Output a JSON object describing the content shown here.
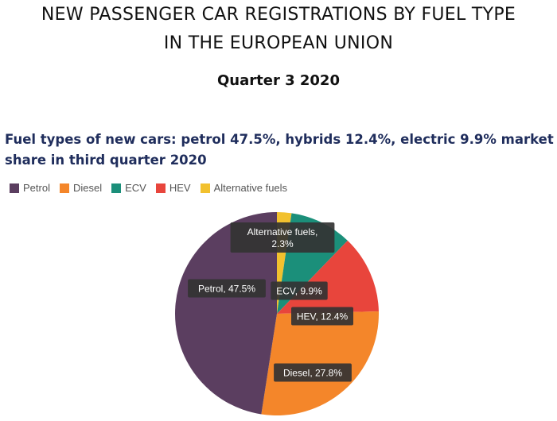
{
  "header": {
    "title_line1": "NEW PASSENGER CAR REGISTRATIONS BY FUEL TYPE",
    "title_line2": "IN THE EUROPEAN UNION",
    "period": "Quarter 3 2020"
  },
  "chart_data": {
    "type": "pie",
    "title": "Fuel types of new cars: petrol 47.5%, hybrids 12.4%, electric 9.9% market share in third quarter 2020",
    "legend_position": "top-left",
    "slices": [
      {
        "name": "Alternative fuels",
        "value": 2.3,
        "color": "#f2c12e",
        "label": "Alternative fuels, 2.3%"
      },
      {
        "name": "ECV",
        "value": 9.9,
        "color": "#1b8f7a",
        "label": "ECV, 9.9%"
      },
      {
        "name": "HEV",
        "value": 12.4,
        "color": "#e8453c",
        "label": "HEV, 12.4%"
      },
      {
        "name": "Diesel",
        "value": 27.8,
        "color": "#f4862a",
        "label": "Diesel, 27.8%"
      },
      {
        "name": "Petrol",
        "value": 47.5,
        "color": "#5b3e60",
        "label": "Petrol, 47.5%"
      }
    ],
    "legend": [
      "Petrol",
      "Diesel",
      "ECV",
      "HEV",
      "Alternative fuels"
    ]
  }
}
